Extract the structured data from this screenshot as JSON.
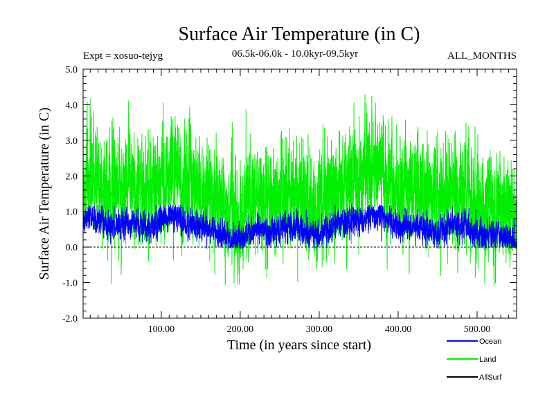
{
  "chart_data": {
    "type": "line",
    "title": "Surface Air Temperature (in C)",
    "subtitle_left": "Expt = xosuo-tejyg",
    "subtitle_center": "06.5k-06.0k - 10.0kyr-09.5kyr",
    "subtitle_right": "ALL_MONTHS",
    "xlabel": "Time (in years since start)",
    "ylabel": "Surface Air Temperature (in C)",
    "xlim": [
      1,
      550
    ],
    "ylim": [
      -2.0,
      5.0
    ],
    "x_ticks": [
      100,
      200,
      300,
      400,
      500
    ],
    "x_tick_labels": [
      "100.00",
      "200.00",
      "300.00",
      "400.00",
      "500.00"
    ],
    "y_ticks": [
      -2.0,
      -1.0,
      0.0,
      1.0,
      2.0,
      3.0,
      4.0,
      5.0
    ],
    "y_tick_labels": [
      "-2.0",
      "-1.0",
      "0.0",
      "1.0",
      "2.0",
      "3.0",
      "4.0",
      "5.0"
    ],
    "zero_line": 0.0,
    "samples_per_year": 12,
    "legend_position": "bottom-right",
    "series": [
      {
        "name": "Land",
        "color": "#00ee00",
        "mean": 1.5,
        "spread": 0.75,
        "min": -1.1,
        "max": 4.3
      },
      {
        "name": "Ocean",
        "color": "#0000ff",
        "mean": 0.55,
        "spread": 0.2,
        "min": -0.05,
        "max": 1.2
      },
      {
        "name": "AllSurf",
        "color": "#000000"
      }
    ],
    "legend": [
      {
        "name": "Ocean",
        "color": "#0000ff"
      },
      {
        "name": "Land",
        "color": "#00ee00"
      },
      {
        "name": "AllSurf",
        "color": "#000000"
      }
    ]
  }
}
